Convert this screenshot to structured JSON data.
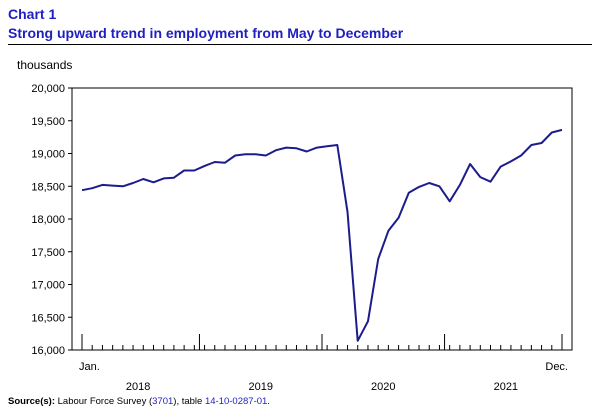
{
  "header": {
    "chart_number": "Chart 1",
    "title": "Strong upward trend in employment from May to December",
    "unit": "thousands"
  },
  "source": {
    "label": "Source(s):",
    "text_before": "Labour Force Survey (",
    "survey_id": "3701",
    "text_middle": "), table ",
    "table_id": "14-10-0287-01",
    "text_after": "."
  },
  "colors": {
    "line": "#1c1c8c",
    "title": "#1f1fbf",
    "link": "#1f1fbf"
  },
  "chart_data": {
    "type": "line",
    "title": "Strong upward trend in employment from May to December",
    "ylabel": "thousands",
    "xlabel": "",
    "ylim": [
      16000,
      20000
    ],
    "y_ticks": [
      "16,000",
      "16,500",
      "17,000",
      "17,500",
      "18,000",
      "18,500",
      "19,000",
      "19,500",
      "20,000"
    ],
    "y_tick_values": [
      16000,
      16500,
      17000,
      17500,
      18000,
      18500,
      19000,
      19500,
      20000
    ],
    "x_start_label": "Jan.",
    "x_end_label": "Dec.",
    "year_labels": [
      "2018",
      "2019",
      "2020",
      "2021"
    ],
    "grid": false,
    "series": [
      {
        "values": [
          18440,
          18470,
          18520,
          18510,
          18500,
          18550,
          18610,
          18560,
          18620,
          18630,
          18740,
          18740,
          18810,
          18870,
          18860,
          18970,
          18990,
          18990,
          18970,
          19050,
          19090,
          19080,
          19030,
          19090,
          19110,
          19130,
          18110,
          16140,
          16440,
          17390,
          17820,
          18020,
          18400,
          18490,
          18550,
          18500,
          18270,
          18520,
          18840,
          18640,
          18570,
          18800,
          18880,
          18970,
          19130,
          19160,
          19320,
          19360
        ]
      }
    ]
  }
}
